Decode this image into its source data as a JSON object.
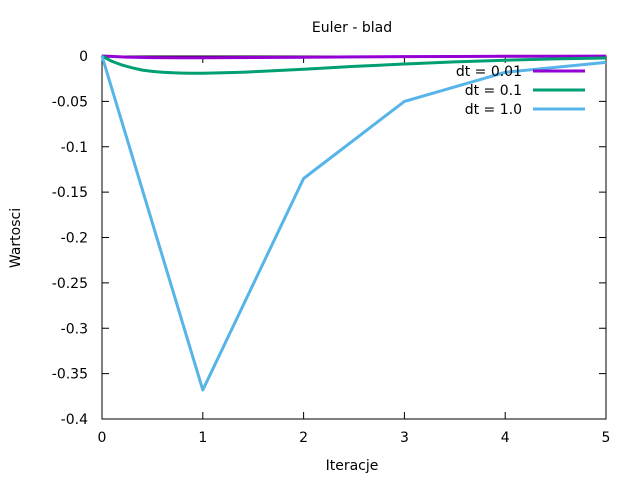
{
  "chart_data": {
    "type": "line",
    "title": "Euler - blad",
    "xlabel": "Iteracje",
    "ylabel": "Wartosci",
    "xlim": [
      0,
      5
    ],
    "ylim": [
      -0.4,
      0
    ],
    "xticks": [
      0,
      1,
      2,
      3,
      4,
      5
    ],
    "yticks": [
      0,
      -0.05,
      -0.1,
      -0.15,
      -0.2,
      -0.25,
      -0.3,
      -0.35,
      -0.4
    ],
    "ytick_labels": [
      "0",
      "-0.05",
      "-0.1",
      "-0.15",
      "-0.2",
      "-0.25",
      "-0.3",
      "-0.35",
      "-0.4"
    ],
    "grid": false,
    "legend_position": "top-right",
    "series": [
      {
        "name": "dt = 0.01",
        "color": "#9400d3",
        "x": [
          0,
          0.25,
          0.5,
          0.75,
          1,
          1.5,
          2,
          2.5,
          3,
          3.5,
          4,
          4.5,
          5
        ],
        "y": [
          0,
          -0.0012,
          -0.0018,
          -0.002,
          -0.002,
          -0.0017,
          -0.0013,
          -0.001,
          -0.0007,
          -0.0005,
          -0.0003,
          -0.0002,
          -0.0001
        ]
      },
      {
        "name": "dt = 0.1",
        "color": "#009e73",
        "x": [
          0,
          0.1,
          0.2,
          0.3,
          0.4,
          0.5,
          0.6,
          0.7,
          0.8,
          0.9,
          1,
          1.2,
          1.4,
          1.6,
          1.8,
          2,
          2.5,
          3,
          3.5,
          4,
          4.5,
          5
        ],
        "y": [
          0,
          -0.006,
          -0.01,
          -0.013,
          -0.0155,
          -0.017,
          -0.018,
          -0.0185,
          -0.0188,
          -0.019,
          -0.019,
          -0.0185,
          -0.0178,
          -0.0168,
          -0.0157,
          -0.0145,
          -0.0115,
          -0.0088,
          -0.0065,
          -0.0046,
          -0.0032,
          -0.0022
        ]
      },
      {
        "name": "dt = 1.0",
        "color": "#56b4e9",
        "x": [
          0,
          1,
          2,
          3,
          4,
          5
        ],
        "y": [
          0,
          -0.368,
          -0.135,
          -0.05,
          -0.018,
          -0.007
        ]
      }
    ]
  }
}
